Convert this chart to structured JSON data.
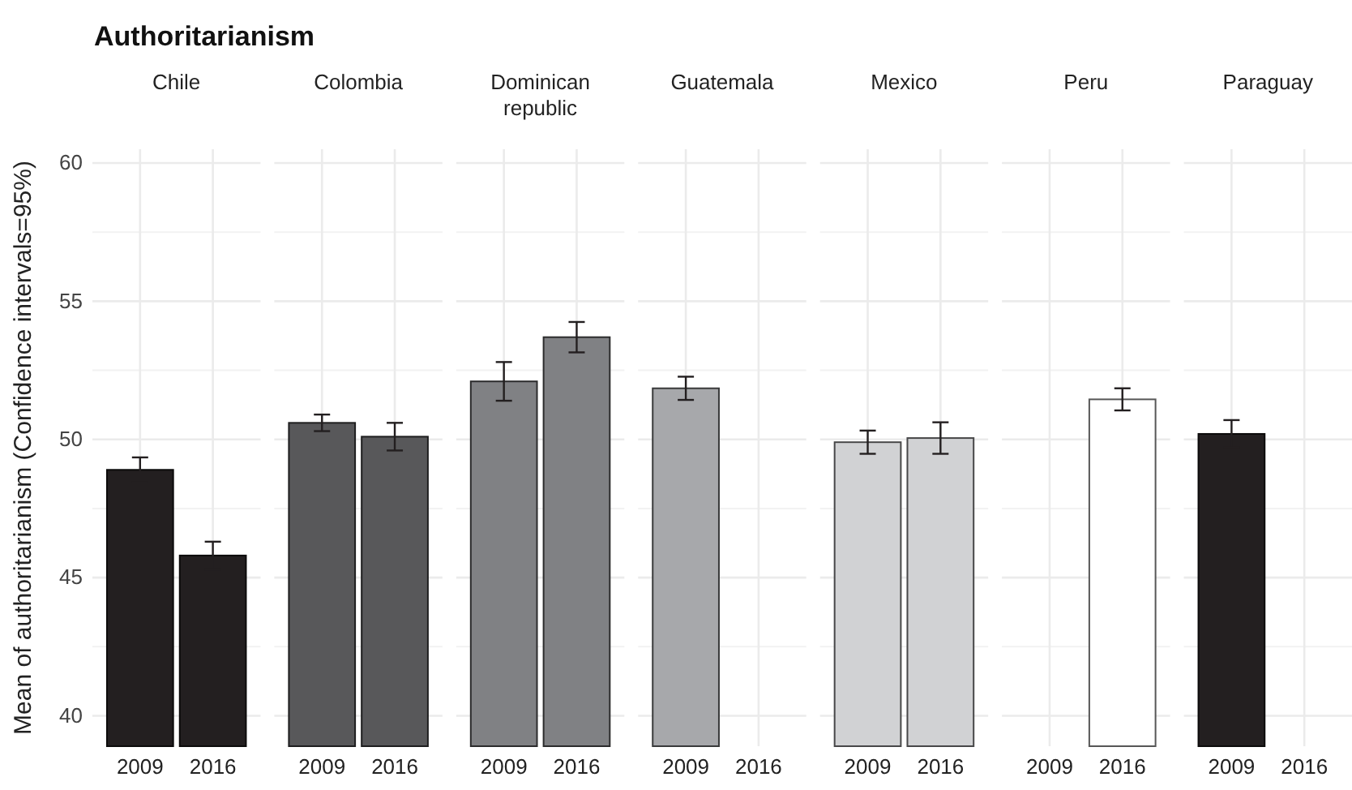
{
  "chart_data": [
    {
      "type": "bar",
      "title": "Authoritarianism",
      "subtitle": "Chile",
      "ylabel": "Mean of authoritarianism (Confidence intervals=95%)",
      "categories": [
        "2009",
        "2016"
      ],
      "values": [
        48.9,
        45.8
      ],
      "errors": [
        0.45,
        0.5
      ],
      "color": "#231f20",
      "ylim": [
        38.9,
        60.5
      ],
      "yticks": [
        40,
        45,
        50,
        55,
        60
      ],
      "grid": true
    },
    {
      "type": "bar",
      "subtitle": "Colombia",
      "categories": [
        "2009",
        "2016"
      ],
      "values": [
        50.6,
        50.1
      ],
      "errors": [
        0.3,
        0.5
      ],
      "color": "#58585a",
      "ylim": [
        38.9,
        60.5
      ],
      "yticks": [
        40,
        45,
        50,
        55,
        60
      ],
      "grid": true,
      "tick_labels": "x"
    },
    {
      "type": "bar",
      "subtitle": "Dominican republic",
      "categories": [
        "2009",
        "2016"
      ],
      "values": [
        52.1,
        53.7
      ],
      "errors": [
        0.7,
        0.55
      ],
      "color": "#808184",
      "ylim": [
        38.9,
        60.5
      ],
      "yticks": [
        40,
        45,
        50,
        55,
        60
      ],
      "grid": true,
      "tick_labels": "x"
    },
    {
      "type": "bar",
      "subtitle": "Guatemala",
      "categories": [
        "2009",
        "2016"
      ],
      "values": [
        51.85,
        null
      ],
      "errors": [
        0.42,
        null
      ],
      "color": "#a7a8ab",
      "ylim": [
        38.9,
        60.5
      ],
      "yticks": [
        40,
        45,
        50,
        55,
        60
      ],
      "grid": true,
      "tick_labels": "x"
    },
    {
      "type": "bar",
      "subtitle": "Mexico",
      "categories": [
        "2009",
        "2016"
      ],
      "values": [
        49.9,
        50.05
      ],
      "errors": [
        0.42,
        0.57
      ],
      "color": "#d1d2d4",
      "ylim": [
        38.9,
        60.5
      ],
      "yticks": [
        40,
        45,
        50,
        55,
        60
      ],
      "grid": true,
      "tick_labels": "x"
    },
    {
      "type": "bar",
      "subtitle": "Peru",
      "categories": [
        "2009",
        "2016"
      ],
      "values": [
        null,
        51.45
      ],
      "errors": [
        null,
        0.4
      ],
      "color": "#ffffff",
      "ylim": [
        38.9,
        60.5
      ],
      "yticks": [
        40,
        45,
        50,
        55,
        60
      ],
      "grid": true,
      "tick_labels": "x"
    },
    {
      "type": "bar",
      "subtitle": "Paraguay",
      "categories": [
        "2009",
        "2016"
      ],
      "values": [
        50.2,
        null
      ],
      "errors": [
        0.5,
        null
      ],
      "color": "#231f20",
      "ylim": [
        38.9,
        60.5
      ],
      "yticks": [
        40,
        45,
        50,
        55,
        60
      ],
      "grid": true,
      "tick_labels": "x"
    }
  ]
}
